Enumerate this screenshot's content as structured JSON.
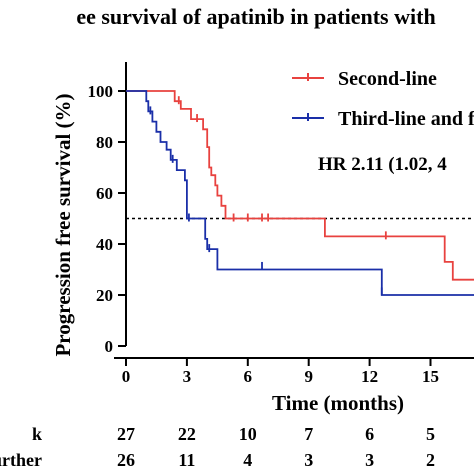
{
  "chart_data": {
    "type": "line",
    "subtype": "kaplan-meier",
    "title": "ee survival of apatinib in patients with",
    "xlabel": "Time (months)",
    "ylabel": "Progression free survival (%)",
    "xlim": [
      0,
      18.5
    ],
    "ylim": [
      0,
      105
    ],
    "xticks": [
      "0",
      "3",
      "6",
      "9",
      "12",
      "15"
    ],
    "yticks": [
      "0",
      "20",
      "40",
      "60",
      "80",
      "100"
    ],
    "reference_line": {
      "y": 50,
      "style": "dotted"
    },
    "hr_text": "HR 2.11 (1.02, 4",
    "legend_position": "top-right",
    "series": [
      {
        "name": "Second-line",
        "color": "#e8423f",
        "points": [
          [
            0,
            100
          ],
          [
            2.4,
            100
          ],
          [
            2.4,
            96
          ],
          [
            2.7,
            96
          ],
          [
            2.7,
            93
          ],
          [
            3.2,
            93
          ],
          [
            3.2,
            89
          ],
          [
            3.8,
            89
          ],
          [
            3.8,
            85
          ],
          [
            4.0,
            85
          ],
          [
            4.0,
            78
          ],
          [
            4.1,
            78
          ],
          [
            4.1,
            70
          ],
          [
            4.2,
            70
          ],
          [
            4.2,
            67
          ],
          [
            4.4,
            67
          ],
          [
            4.4,
            63
          ],
          [
            4.5,
            63
          ],
          [
            4.5,
            59
          ],
          [
            4.7,
            59
          ],
          [
            4.7,
            55
          ],
          [
            4.9,
            55
          ],
          [
            4.9,
            50
          ],
          [
            9.8,
            50
          ],
          [
            9.8,
            43
          ],
          [
            15.7,
            43
          ],
          [
            15.7,
            33
          ],
          [
            16.1,
            33
          ],
          [
            16.1,
            26
          ],
          [
            18.5,
            26
          ]
        ],
        "censors": [
          [
            2.6,
            96
          ],
          [
            3.5,
            89
          ],
          [
            5.3,
            50
          ],
          [
            6.0,
            50
          ],
          [
            6.7,
            50
          ],
          [
            7.0,
            50
          ],
          [
            12.8,
            43
          ]
        ]
      },
      {
        "name": "Third-line and further",
        "color": "#1a2fa8",
        "points": [
          [
            0,
            100
          ],
          [
            1.0,
            100
          ],
          [
            1.0,
            96
          ],
          [
            1.1,
            96
          ],
          [
            1.1,
            92
          ],
          [
            1.3,
            92
          ],
          [
            1.3,
            88
          ],
          [
            1.5,
            88
          ],
          [
            1.5,
            84
          ],
          [
            1.7,
            84
          ],
          [
            1.7,
            80
          ],
          [
            2.0,
            80
          ],
          [
            2.0,
            77
          ],
          [
            2.2,
            77
          ],
          [
            2.2,
            73
          ],
          [
            2.5,
            73
          ],
          [
            2.5,
            69
          ],
          [
            2.9,
            69
          ],
          [
            2.9,
            65
          ],
          [
            3.0,
            65
          ],
          [
            3.0,
            50
          ],
          [
            3.9,
            50
          ],
          [
            3.9,
            42
          ],
          [
            4.0,
            42
          ],
          [
            4.0,
            38
          ],
          [
            4.5,
            38
          ],
          [
            4.5,
            30
          ],
          [
            12.6,
            30
          ],
          [
            12.6,
            20
          ],
          [
            18.5,
            20
          ]
        ],
        "censors": [
          [
            1.2,
            92
          ],
          [
            2.3,
            73
          ],
          [
            3.1,
            50
          ],
          [
            4.1,
            38
          ],
          [
            6.7,
            31
          ],
          [
            12.6,
            21
          ]
        ]
      }
    ],
    "risk_table": {
      "rows": [
        {
          "label": "k",
          "values": [
            "27",
            "22",
            "10",
            "7",
            "6",
            "5"
          ]
        },
        {
          "label": "nd further",
          "values": [
            "26",
            "11",
            "4",
            "3",
            "3",
            "2"
          ]
        }
      ]
    }
  }
}
